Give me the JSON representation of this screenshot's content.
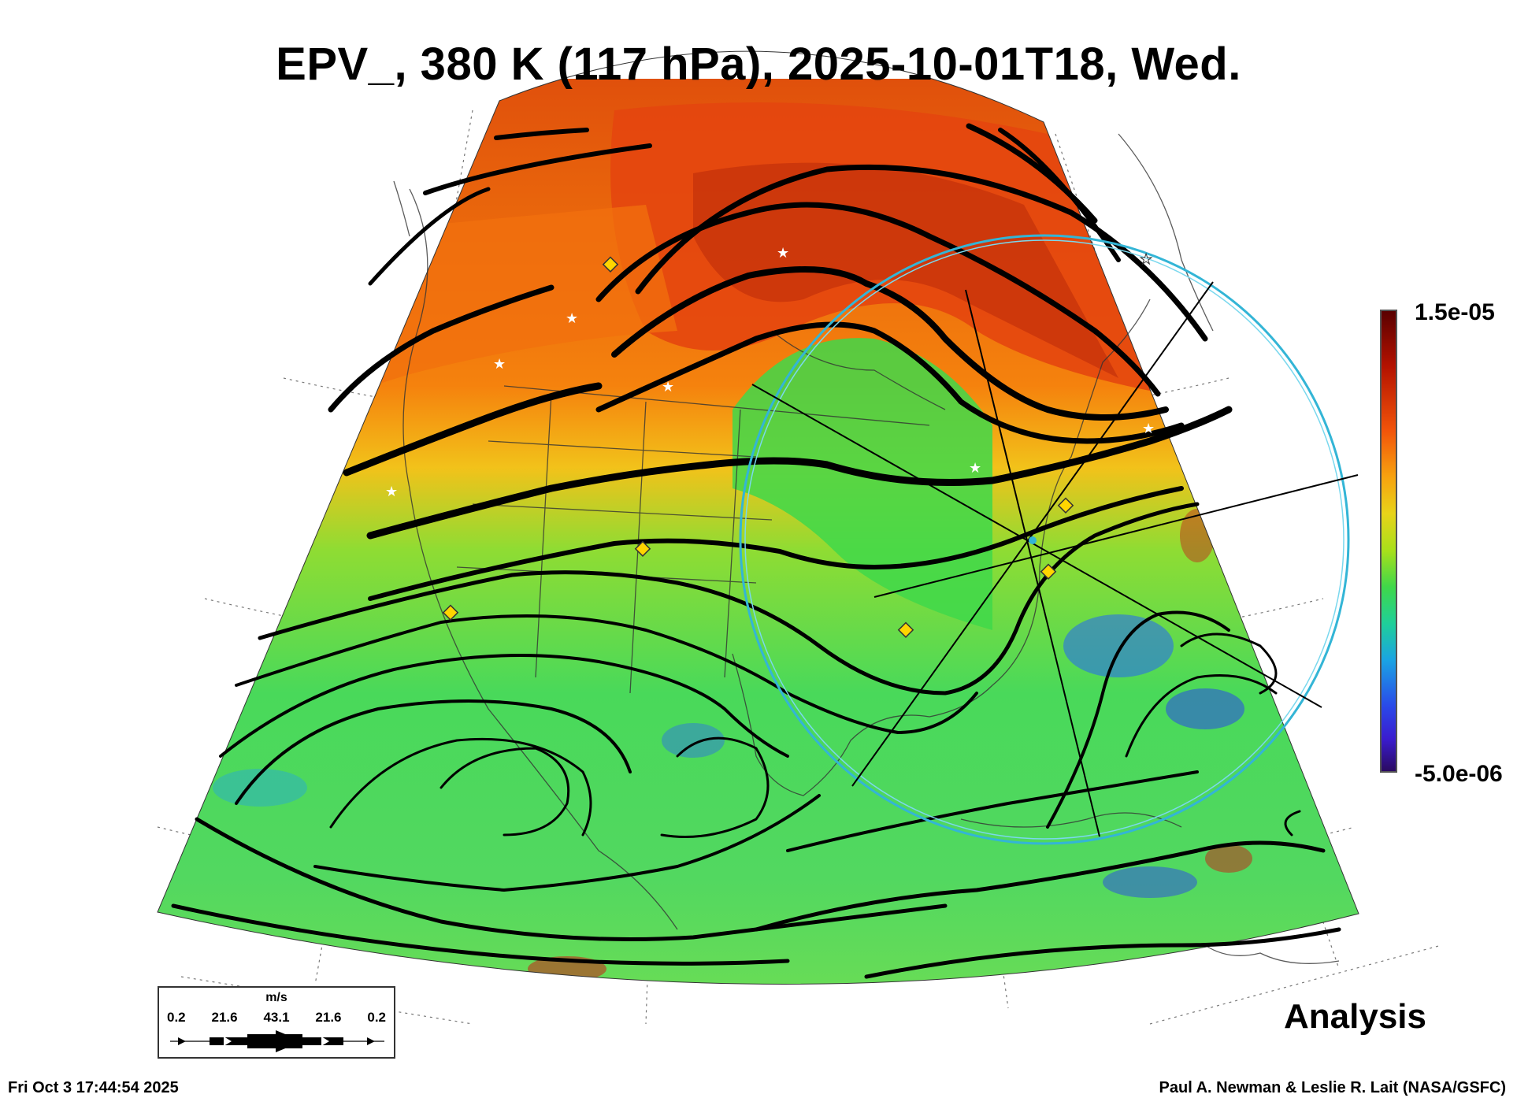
{
  "title": "EPV_, 380 K (117 hPa), 2025-10-01T18, Wed.",
  "colorbar": {
    "max_label": "1.5e-05",
    "min_label": "-5.0e-06"
  },
  "legend": {
    "units": "m/s",
    "ticks": [
      "0.2",
      "21.6",
      "43.1",
      "21.6",
      "0.2"
    ]
  },
  "analysis_label": "Analysis",
  "footer": {
    "timestamp": "Fri Oct  3 17:44:54 2025",
    "credit": "Paul A. Newman & Leslie R. Lait (NASA/GSFC)"
  },
  "colors": {
    "high_pv": "#f2540a",
    "mid_pv": "#3fd84a",
    "low_pv": "#2a48e8",
    "circle": "#33b5d6",
    "marker": "#ffd500"
  }
}
